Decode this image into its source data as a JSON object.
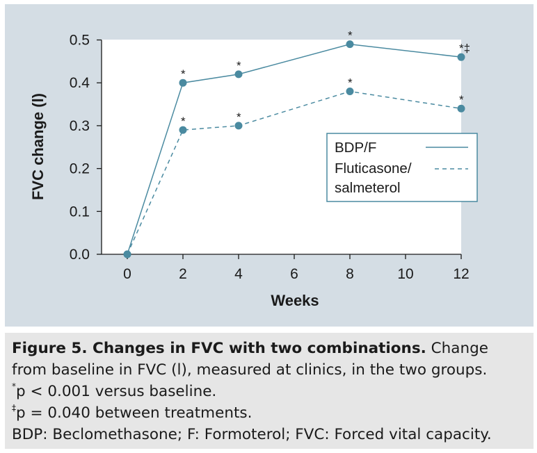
{
  "chart_data": {
    "type": "line",
    "xlabel": "Weeks",
    "ylabel": "FVC change (l)",
    "x": [
      0,
      2,
      4,
      8,
      12
    ],
    "xlim": [
      -1,
      12
    ],
    "ylim": [
      0,
      0.5
    ],
    "x_ticks": [
      "0",
      "2",
      "4",
      "6",
      "8",
      "10",
      "12"
    ],
    "x_tick_values": [
      0,
      2,
      4,
      6,
      8,
      10,
      12
    ],
    "y_ticks": [
      "0.0",
      "0.1",
      "0.2",
      "0.3",
      "0.4",
      "0.5"
    ],
    "y_tick_values": [
      0,
      0.1,
      0.2,
      0.3,
      0.4,
      0.5
    ],
    "grid": false,
    "legend_position": "right",
    "series": [
      {
        "name": "BDP/F",
        "style": "solid",
        "color": "#4a8aa0",
        "values": [
          0,
          0.4,
          0.42,
          0.49,
          0.46
        ],
        "markers": [
          "",
          "*",
          "*",
          "*",
          "*‡"
        ]
      },
      {
        "name": "Fluticasone/ salmeterol",
        "name_lines": [
          "Fluticasone/",
          "salmeterol"
        ],
        "style": "dashed",
        "color": "#4a8aa0",
        "values": [
          0,
          0.29,
          0.3,
          0.38,
          0.34
        ],
        "markers": [
          "",
          "*",
          "*",
          "*",
          "*"
        ]
      }
    ]
  },
  "caption": {
    "title": "Figure 5. Changes in FVC with two combinations.",
    "line1_rest": " Change",
    "line2": "from baseline in FVC (l), measured at clinics, in the two groups.",
    "note1_symbol": "*",
    "note1_text": "p < 0.001 versus baseline.",
    "note2_symbol": "‡",
    "note2_text": "p = 0.040 between treatments.",
    "abbreviations": "BDP: Beclomethasone; F: Formoterol; FVC: Forced vital capacity."
  },
  "colors": {
    "chart_background": "#d4dde4",
    "plot_background": "#ffffff",
    "caption_background": "#e6e6e6",
    "series": "#4a8aa0"
  }
}
